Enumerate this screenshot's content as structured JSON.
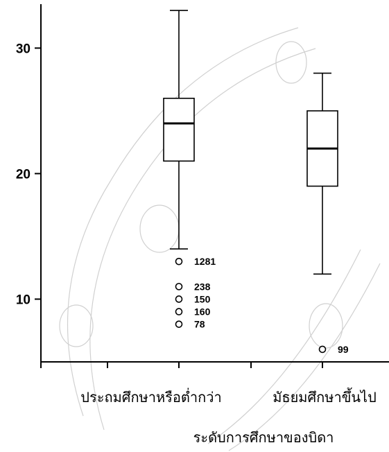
{
  "chart_data": {
    "type": "boxplot",
    "xlabel": "ระดับการศึกษาของบิดา",
    "ylabel": "",
    "ylim": [
      5,
      33.5
    ],
    "yticks": [
      10,
      20,
      30
    ],
    "ytick_labels": [
      "10",
      "20",
      "30"
    ],
    "grid": false,
    "categories": [
      "ประถมศึกษาหรือต่ำกว่า",
      "มัธยมศึกษาขึ้นไป"
    ],
    "boxes": [
      {
        "category": "ประถมศึกษาหรือต่ำกว่า",
        "whisker_low": 14,
        "q1": 21,
        "median": 24,
        "q3": 26,
        "whisker_high": 33,
        "outliers": [
          {
            "value": 13,
            "label": "1281"
          },
          {
            "value": 11,
            "label": "238"
          },
          {
            "value": 10,
            "label": "150"
          },
          {
            "value": 9,
            "label": "160"
          },
          {
            "value": 8,
            "label": "78"
          }
        ]
      },
      {
        "category": "มัธยมศึกษาขึ้นไป",
        "whisker_low": 12,
        "q1": 19,
        "median": 22,
        "q3": 25,
        "whisker_high": 28,
        "outliers": [
          {
            "value": 6,
            "label": "99"
          }
        ]
      }
    ]
  }
}
